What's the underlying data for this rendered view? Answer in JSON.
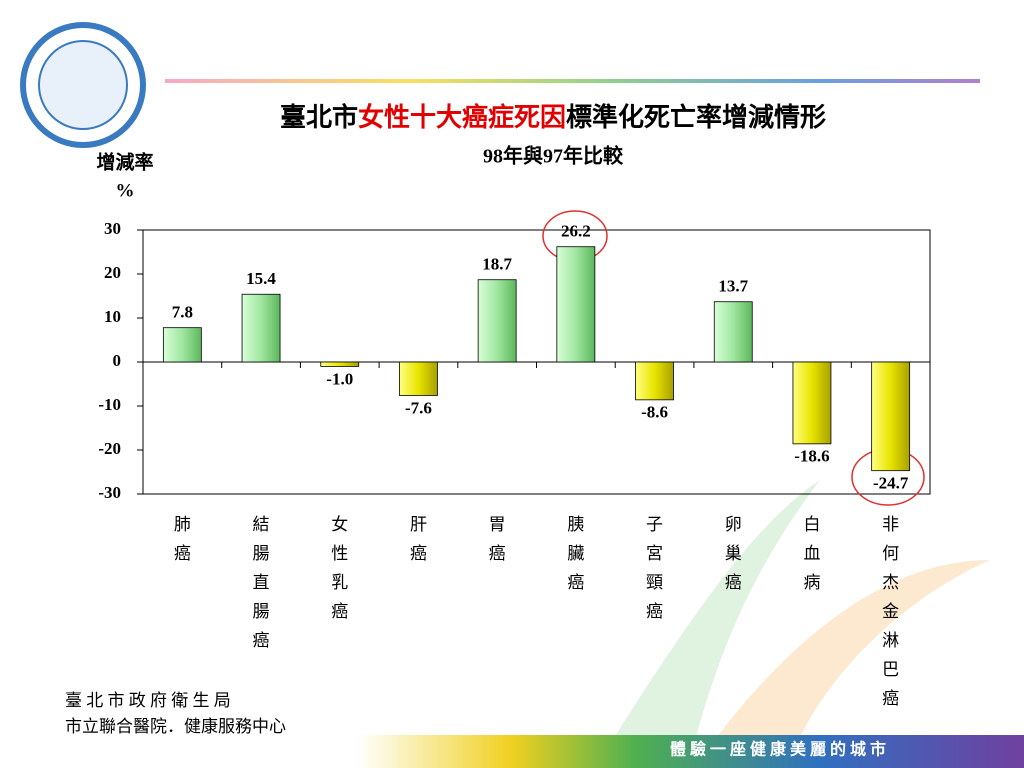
{
  "chart_data": {
    "type": "bar",
    "title_prefix": "臺北市",
    "title_highlight": "女性十大癌症死因",
    "title_suffix": "標準化死亡率增減情形",
    "subtitle": "98年與97年比較",
    "y_label": "增減率",
    "y_unit": "%",
    "categories": [
      "肺癌",
      "結腸直腸癌",
      "女性乳癌",
      "肝癌",
      "胃癌",
      "胰臟癌",
      "子宮頸癌",
      "卵巢癌",
      "白血病",
      "非何杰金淋巴癌"
    ],
    "values": [
      7.8,
      15.4,
      -1.0,
      -7.6,
      18.7,
      26.2,
      -8.6,
      13.7,
      -18.6,
      -24.7
    ],
    "value_labels": [
      "7.8",
      "15.4",
      "-1.0",
      "-7.6",
      "18.7",
      "26.2",
      "-8.6",
      "13.7",
      "-18.6",
      "-24.7"
    ],
    "positive_color": "#a9eaa9",
    "negative_color": "#e8e400",
    "ylim": [
      -30,
      30
    ],
    "yticks": [
      -30,
      -20,
      -10,
      0,
      10,
      20,
      30
    ]
  },
  "footer": {
    "org1": "臺 北 市 政 府 衛 生 局",
    "org2": "市立聯合醫院．健康服務中心",
    "slogan": "體 驗 一 座 健 康 美 麗 的 城 市"
  }
}
